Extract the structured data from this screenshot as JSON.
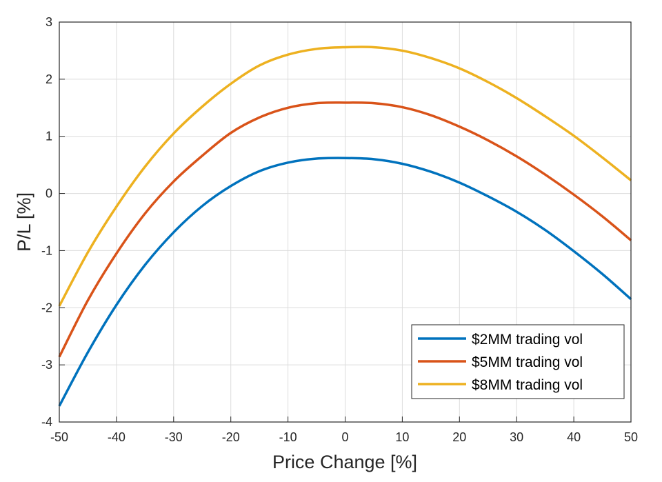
{
  "chart_data": {
    "type": "line",
    "title": "",
    "xlabel": "Price Change [%]",
    "ylabel": "P/L [%]",
    "xlim": [
      -50,
      50
    ],
    "ylim": [
      -4,
      3
    ],
    "xticks": [
      -50,
      -40,
      -30,
      -20,
      -10,
      0,
      10,
      20,
      30,
      40,
      50
    ],
    "yticks": [
      -4,
      -3,
      -2,
      -1,
      0,
      1,
      2,
      3
    ],
    "grid": true,
    "legend_position": "bottom-right",
    "x": [
      -50,
      -45,
      -40,
      -35,
      -30,
      -25,
      -20,
      -15,
      -10,
      -5,
      0,
      5,
      10,
      15,
      20,
      25,
      30,
      35,
      40,
      45,
      50
    ],
    "series": [
      {
        "name": "$2MM trading vol",
        "color": "#0072BD",
        "values": [
          -3.72,
          -2.78,
          -1.95,
          -1.25,
          -0.68,
          -0.22,
          0.13,
          0.39,
          0.54,
          0.61,
          0.62,
          0.6,
          0.52,
          0.38,
          0.19,
          -0.05,
          -0.32,
          -0.64,
          -1.01,
          -1.41,
          -1.85
        ]
      },
      {
        "name": "$5MM trading vol",
        "color": "#D95319",
        "values": [
          -2.86,
          -1.87,
          -1.05,
          -0.35,
          0.21,
          0.66,
          1.06,
          1.33,
          1.5,
          1.58,
          1.59,
          1.58,
          1.51,
          1.37,
          1.17,
          0.93,
          0.65,
          0.33,
          -0.02,
          -0.4,
          -0.82
        ]
      },
      {
        "name": "$8MM trading vol",
        "color": "#EDB120",
        "values": [
          -1.97,
          -1.03,
          -0.23,
          0.47,
          1.05,
          1.52,
          1.92,
          2.24,
          2.43,
          2.53,
          2.56,
          2.56,
          2.5,
          2.37,
          2.19,
          1.95,
          1.67,
          1.35,
          1.01,
          0.63,
          0.23
        ]
      }
    ]
  }
}
